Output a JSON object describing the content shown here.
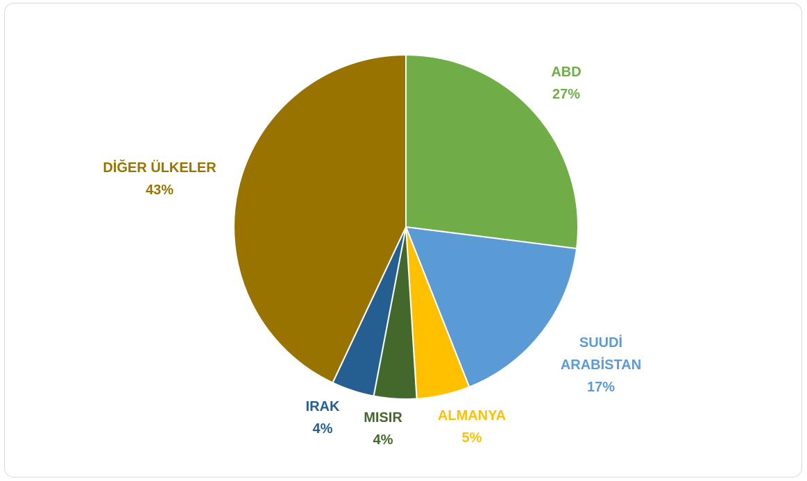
{
  "chart_data": {
    "type": "pie",
    "title": "",
    "legend": "none",
    "slices": [
      {
        "label": "ABD",
        "value": 27,
        "display": "27%",
        "color": "#70AD47"
      },
      {
        "label": "SUUDİ ARABİSTAN",
        "label_lines": [
          "SUUDİ",
          "ARABİSTAN"
        ],
        "value": 17,
        "display": "17%",
        "color": "#5B9BD5"
      },
      {
        "label": "ALMANYA",
        "value": 5,
        "display": "5%",
        "color": "#FFC000"
      },
      {
        "label": "MISIR",
        "value": 4,
        "display": "4%",
        "color": "#43682B"
      },
      {
        "label": "IRAK",
        "value": 4,
        "display": "4%",
        "color": "#255E91"
      },
      {
        "label": "DİĞER ÜLKELER",
        "value": 43,
        "display": "43%",
        "color": "#997300"
      }
    ]
  }
}
